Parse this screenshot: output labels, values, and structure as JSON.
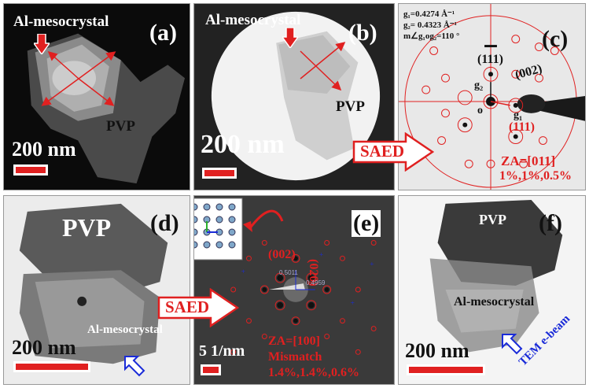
{
  "panels": {
    "a": {
      "letter": "(a)",
      "title": "Al-mesocrystal",
      "material": "PVP",
      "scale": "200 nm"
    },
    "b": {
      "letter": "(b)",
      "title": "Al-mesocrystal",
      "material": "PVP",
      "scale": "200 nm"
    },
    "c": {
      "letter": "(c)",
      "g1": "g₁=0.4274 Å⁻¹",
      "g2": "g₂= 0.4323 Å⁻¹",
      "angle": "m∠g₁og₂=110 °",
      "idx_111bar": "(111)",
      "idx_002": "(002)",
      "idx_111": "(111)",
      "g2_label": "g₂",
      "g1_label": "g₁",
      "o_label": "o",
      "za": "ZA=[011]",
      "mismatch": "1%,1%,0.5%",
      "saed": "SAED"
    },
    "d": {
      "letter": "(d)",
      "material": "PVP",
      "title": "Al-mesocrystal",
      "scale": "200 nm"
    },
    "e": {
      "letter": "(e)",
      "idx_002": "(002)",
      "idx_020": "(020)",
      "d1": "0.5011",
      "d2": "0.4959",
      "scale": "5 1/nm",
      "za": "ZA=[100]",
      "mismatch_label": "Mismatch",
      "mismatch": "1.4%,1.4%,0.6%",
      "saed": "SAED"
    },
    "f": {
      "letter": "(f)",
      "material": "PVP",
      "title": "Al-mesocrystal",
      "scale": "200 nm",
      "beam": "TEM e-beam"
    }
  },
  "colors": {
    "accent_red": "#e02020",
    "annotation_blue": "#1a2bd8"
  }
}
